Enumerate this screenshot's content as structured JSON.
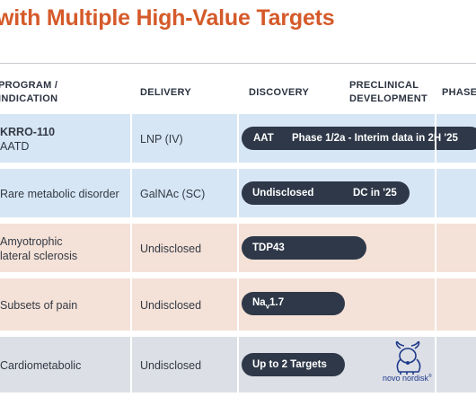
{
  "title": "with Multiple High-Value Targets",
  "columns": {
    "program": "PROGRAM /",
    "program2": "INDICATION",
    "delivery": "DELIVERY",
    "discovery": "DISCOVERY",
    "preclinical1": "PRECLINICAL",
    "preclinical2": "DEVELOPMENT",
    "phase": "PHASE"
  },
  "rows": [
    {
      "program1": "KRRO-110",
      "program2": "AATD",
      "delivery": "LNP (IV)",
      "target": "AAT",
      "status": "Phase 1/2a - Interim data in 2H '25"
    },
    {
      "program1": "Rare metabolic disorder",
      "delivery": "GalNAc (SC)",
      "target": "Undisclosed",
      "status": "DC in '25"
    },
    {
      "program1": "Amyotrophic",
      "program2": "lateral sclerosis",
      "delivery": "Undisclosed",
      "target": "TDP43"
    },
    {
      "program1": "Subsets of pain",
      "delivery": "Undisclosed",
      "target_main": "Na",
      "target_sub": "v",
      "target_rest": "1.7"
    },
    {
      "program1": "Cardiometabolic",
      "delivery": "Undisclosed",
      "target": "Up to 2 Targets"
    }
  ],
  "partner_logo": {
    "text": "novo nordisk",
    "mark": "®"
  },
  "colors": {
    "title": "#d55a2a",
    "row_blue": "#d7e6f4",
    "row_peach": "#f4e1d7",
    "row_gray": "#dcdfe6",
    "pill": "#2e3848",
    "logo": "#1f3a8a"
  }
}
